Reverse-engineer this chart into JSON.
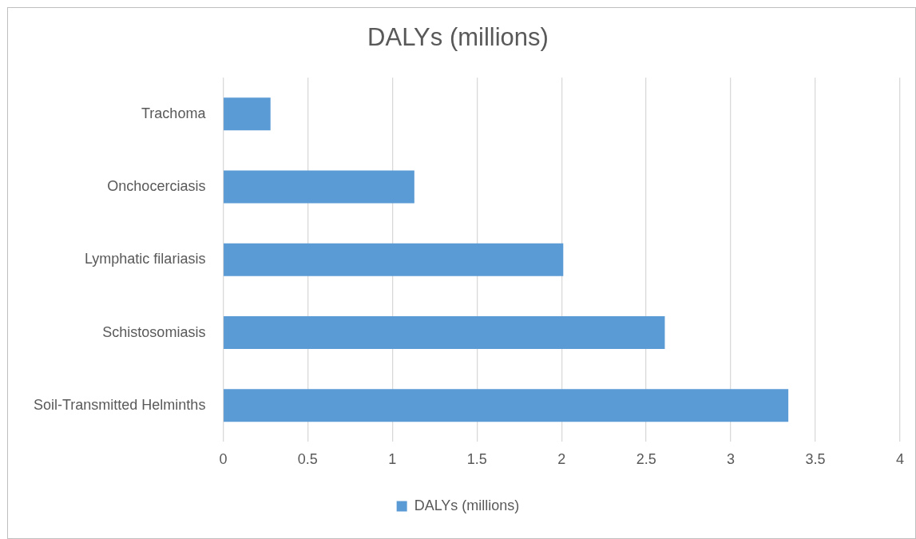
{
  "chart_data": {
    "type": "bar",
    "orientation": "horizontal",
    "title": "DALYs (millions)",
    "categories": [
      "Trachoma",
      "Onchocerciasis",
      "Lymphatic filariasis",
      "Schistosomiasis",
      "Soil-Transmitted Helminths"
    ],
    "series": [
      {
        "name": "DALYs (millions)",
        "color": "#5b9bd5",
        "values": [
          0.28,
          1.13,
          2.01,
          2.61,
          3.34
        ]
      }
    ],
    "xlim": [
      0,
      4
    ],
    "xticks": [
      0,
      0.5,
      1,
      1.5,
      2,
      2.5,
      3,
      3.5,
      4
    ],
    "grid": "x",
    "legend": "bottom"
  }
}
